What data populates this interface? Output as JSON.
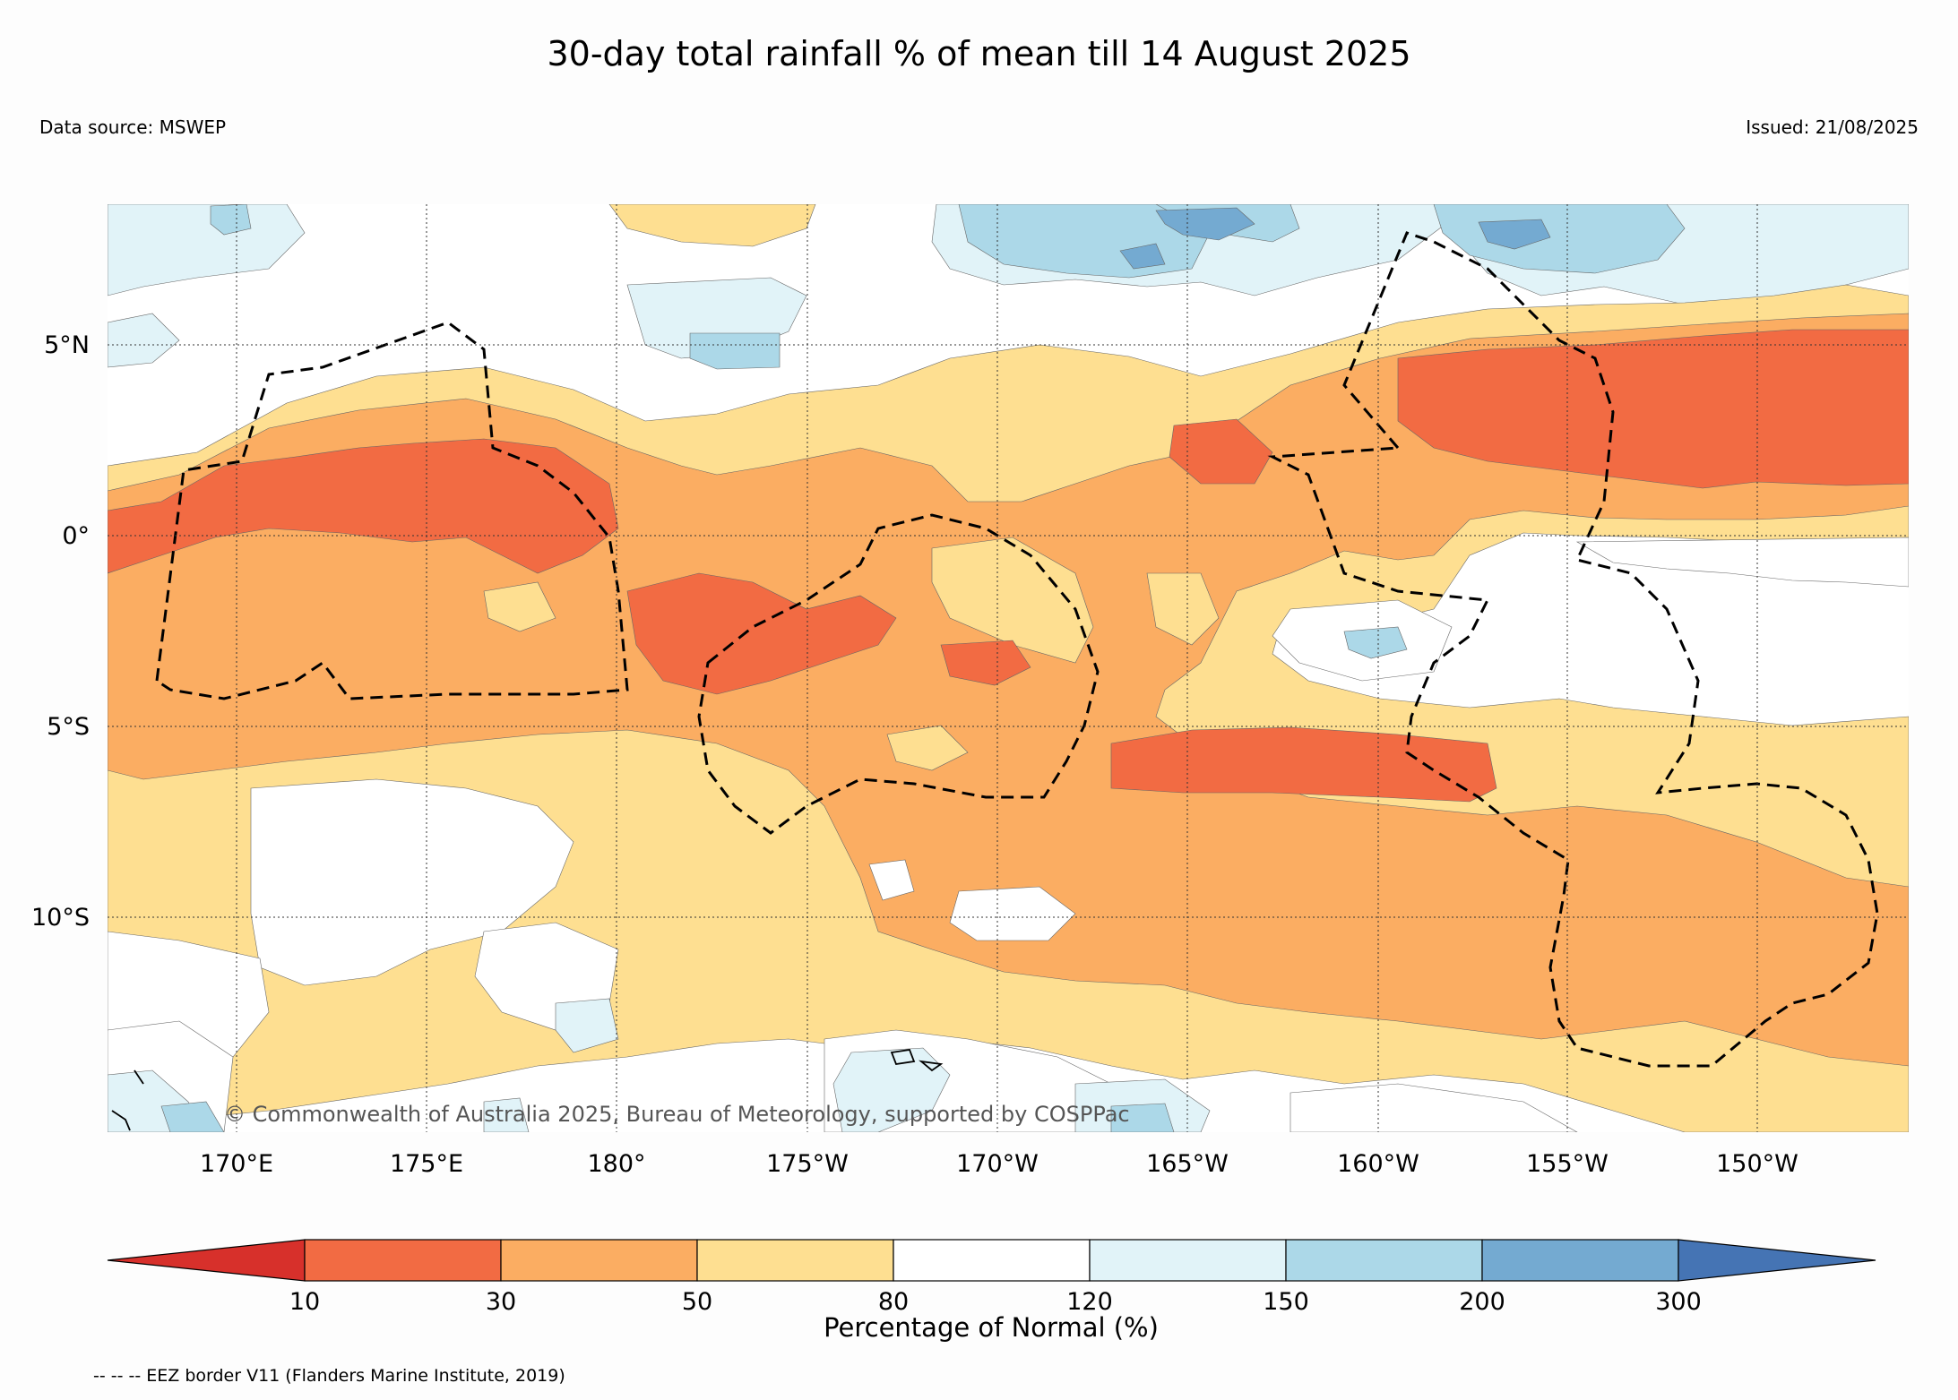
{
  "title": "30-day total rainfall % of mean till 14 August 2025",
  "data_source": "Data source: MSWEP",
  "issued": "Issued: 21/08/2025",
  "copyright": "© Commonwealth of Australia 2025, Bureau of Meteorology, supported by COSPPac",
  "map": {
    "lon_ticks": [
      "170°E",
      "175°E",
      "180°",
      "175°W",
      "170°W",
      "165°W",
      "160°W",
      "155°W",
      "150°W"
    ],
    "lat_ticks": [
      "5°N",
      "0°",
      "5°S",
      "10°S"
    ]
  },
  "colorbar": {
    "title": "Percentage of Normal (%)",
    "tick_labels": [
      "10",
      "30",
      "50",
      "80",
      "120",
      "150",
      "200",
      "300"
    ],
    "bins": [
      {
        "range": "<10",
        "color": "#d7302b"
      },
      {
        "range": "10-30",
        "color": "#f26b43"
      },
      {
        "range": "30-50",
        "color": "#fbad62"
      },
      {
        "range": "50-80",
        "color": "#fedf91"
      },
      {
        "range": "80-120",
        "color": "#ffffff"
      },
      {
        "range": "120-150",
        "color": "#e1f3f8"
      },
      {
        "range": "150-200",
        "color": "#acd8e8"
      },
      {
        "range": "200-300",
        "color": "#74aad1"
      },
      {
        "range": ">300",
        "color": "#4574b4"
      }
    ]
  },
  "footnote": "-- -- -- EEZ border V11 (Flanders Marine Institute, 2019)"
}
